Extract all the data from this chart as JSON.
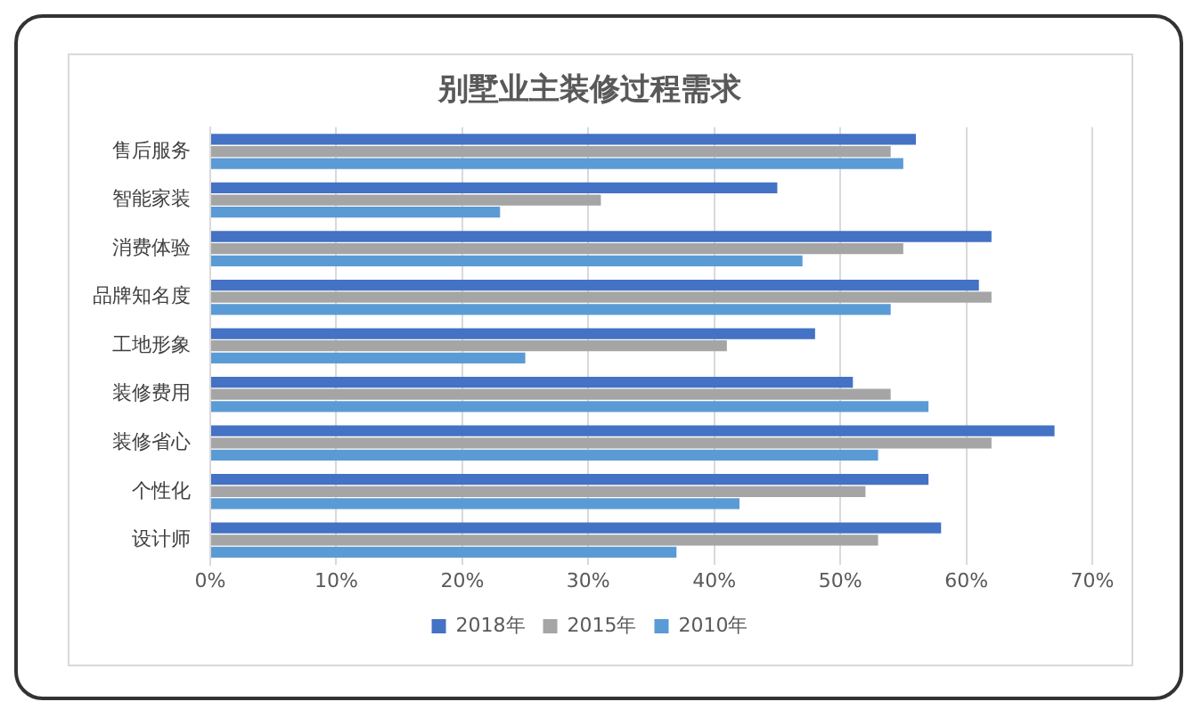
{
  "chart_data": {
    "type": "bar",
    "orientation": "horizontal",
    "title": "别墅业主装修过程需求",
    "categories": [
      "售后服务",
      "智能家装",
      "消费体验",
      "品牌知名度",
      "工地形象",
      "装修费用",
      "装修省心",
      "个性化",
      "设计师"
    ],
    "series": [
      {
        "name": "2018年",
        "color": "#4472c4",
        "values": [
          56,
          45,
          62,
          61,
          48,
          51,
          67,
          57,
          58
        ]
      },
      {
        "name": "2015年",
        "color": "#a5a5a5",
        "values": [
          54,
          31,
          55,
          62,
          41,
          54,
          62,
          52,
          53
        ]
      },
      {
        "name": "2010年",
        "color": "#5b9bd5",
        "values": [
          55,
          23,
          47,
          54,
          25,
          57,
          53,
          42,
          37
        ]
      }
    ],
    "xlim": [
      0,
      70
    ],
    "xticks": [
      {
        "value": 0,
        "label": "0%"
      },
      {
        "value": 10,
        "label": "10%"
      },
      {
        "value": 20,
        "label": "20%"
      },
      {
        "value": 30,
        "label": "30%"
      },
      {
        "value": 40,
        "label": "40%"
      },
      {
        "value": 50,
        "label": "50%"
      },
      {
        "value": 60,
        "label": "60%"
      },
      {
        "value": 70,
        "label": "70%"
      }
    ],
    "grid": "x",
    "legend": "bottom"
  }
}
